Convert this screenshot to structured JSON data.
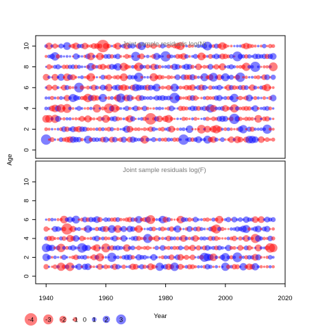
{
  "chart_data": {
    "type": "scatter",
    "ylabel": "Age",
    "xlabel": "Year",
    "xlim": [
      1936.5,
      2020
    ],
    "x_ticks": [
      "1940",
      "1960",
      "1980",
      "2000",
      "2020"
    ],
    "colors": {
      "positive": "#0000ff",
      "negative": "#ff0000"
    },
    "years_start": 1940,
    "years_end": 2016,
    "panels": [
      {
        "title": "Joint sample residuals log(N)",
        "ylim": [
          -0.8,
          11
        ],
        "y_ticks": [
          "0",
          "2",
          "4",
          "6",
          "8",
          "10"
        ],
        "ages": [
          1,
          2,
          3,
          4,
          5,
          6,
          7,
          8,
          9,
          10
        ],
        "seed": 7
      },
      {
        "title": "Joint sample residuals log(F)",
        "ylim": [
          -0.8,
          12.2
        ],
        "y_ticks": [
          "0",
          "2",
          "4",
          "6",
          "8",
          "10"
        ],
        "ages": [
          1,
          2,
          3,
          4,
          5,
          6
        ],
        "seed": 19
      }
    ],
    "legend": {
      "position": "bottom-left",
      "items": [
        {
          "label": "-4",
          "value": -4
        },
        {
          "label": "-3",
          "value": -3
        },
        {
          "label": "-2",
          "value": -2
        },
        {
          "label": "-1",
          "value": -1
        },
        {
          "label": "0",
          "value": 0
        },
        {
          "label": "1",
          "value": 1
        },
        {
          "label": "2",
          "value": 2
        },
        {
          "label": "3",
          "value": 3
        }
      ]
    }
  }
}
